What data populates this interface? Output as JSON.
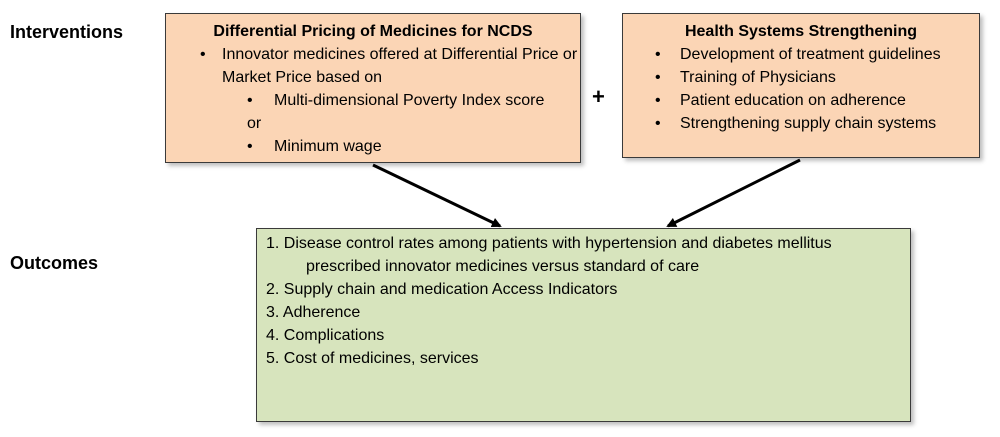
{
  "labels": {
    "interventions": "Interventions",
    "outcomes": "Outcomes"
  },
  "pricing_box": {
    "title": "Differential Pricing of Medicines for NCDS",
    "bullet1": "Innovator medicines offered at Differential Price or Market Price based on",
    "sub1": "Multi-dimensional Poverty Index score",
    "or": "or",
    "sub2": "Minimum wage"
  },
  "plus": "+",
  "health_box": {
    "title": "Health Systems Strengthening",
    "items": [
      "Development of treatment guidelines",
      "Training of Physicians",
      "Patient education on adherence",
      "Strengthening supply chain systems"
    ]
  },
  "outcomes_box": {
    "item1_line1": "1. Disease control rates among patients with hypertension and diabetes mellitus",
    "item1_line2": "prescribed innovator medicines versus standard of care",
    "item2": "2. Supply chain and medication Access Indicators",
    "item3": "3. Adherence",
    "item4": "4. Complications",
    "item5": "5. Cost of medicines, services"
  },
  "colors": {
    "intervention_fill": "#fbd5b5",
    "outcome_fill": "#d7e4bd",
    "border": "#3a3a3a"
  }
}
